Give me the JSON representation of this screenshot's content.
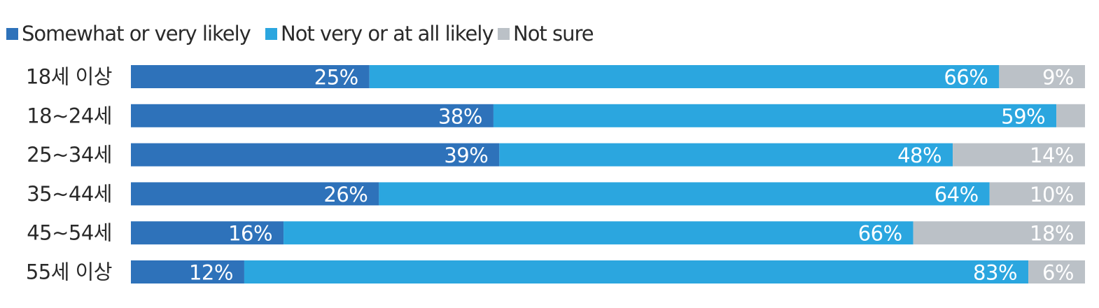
{
  "chart_data": {
    "type": "bar",
    "orientation": "horizontal",
    "stacked": true,
    "categories": [
      "18세 이상",
      "18~24세",
      "25~34세",
      "35~44세",
      "45~54세",
      "55세 이상"
    ],
    "series": [
      {
        "name": "Somewhat or very likely",
        "color": "#2e72ba",
        "values": [
          25,
          38,
          39,
          26,
          16,
          12
        ],
        "labels": [
          "25%",
          "38%",
          "39%",
          "26%",
          "16%",
          "12%"
        ]
      },
      {
        "name": "Not very or at all likely",
        "color": "#2ba6df",
        "values": [
          66,
          59,
          48,
          64,
          66,
          83
        ],
        "labels": [
          "66%",
          "59%",
          "48%",
          "64%",
          "66%",
          "83%"
        ]
      },
      {
        "name": "Not sure",
        "color": "#bbc1c7",
        "values": [
          9,
          3,
          14,
          10,
          18,
          6
        ],
        "labels": [
          "9%",
          "",
          "14%",
          "10%",
          "18%",
          "6%"
        ]
      }
    ],
    "legend_position": "top-left",
    "grid": false
  }
}
